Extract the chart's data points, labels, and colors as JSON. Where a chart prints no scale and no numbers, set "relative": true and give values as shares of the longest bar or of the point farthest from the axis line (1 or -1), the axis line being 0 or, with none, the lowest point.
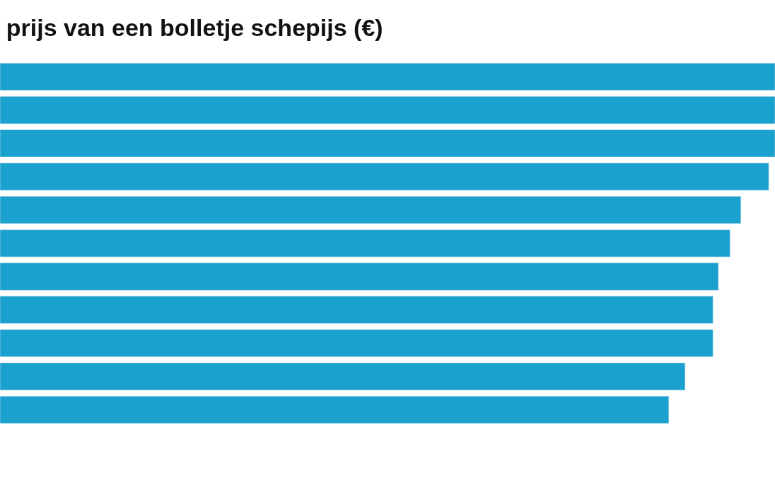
{
  "chart_data": {
    "type": "bar",
    "orientation": "horizontal",
    "relative": true,
    "title": "prijs van een bolletje schepijs (€)",
    "categories": [
      null,
      null,
      null,
      null,
      null,
      null,
      null,
      null,
      null,
      null,
      null
    ],
    "values": [
      1,
      1,
      1,
      0.992,
      0.956,
      0.942,
      0.927,
      0.92,
      0.92,
      0.884,
      0.863
    ],
    "color": "#1aa1cd"
  }
}
